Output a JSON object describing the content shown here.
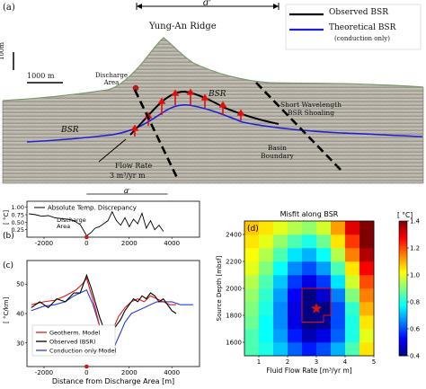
{
  "panel_a": {
    "label": "(a)",
    "dprime": "d'",
    "ridge_name": "Yung-An Ridge",
    "scale_vertical": "100m",
    "scale_horizontal": "1000 m",
    "legend_observed": "Observed BSR",
    "legend_theoretical": "Theoretical BSR",
    "legend_theoretical_note": "(conduction only)",
    "discharge_area": "Discharge\nArea",
    "bsr_left": "BSR",
    "bsr_right": "BSR",
    "short_wavelength": "Short Wavelength\nBSR Shoaling",
    "basin_boundary": "Basin\nBoundary",
    "flow_rate_label": "Flow Rate",
    "flow_rate_value": "3 m³/yr m",
    "colors": {
      "observed": "#000000",
      "theoretical": "#1f1fd6",
      "arrows": "#e01010"
    }
  },
  "panel_b": {
    "label": "(b)",
    "dprime": "d'",
    "ylabel": "[ °C]",
    "legend": "Absolute Temp. Discrepancy",
    "discharge_area": "Discharge\nArea"
  },
  "panel_c": {
    "label": "(c)",
    "ylabel": "[ °C/km]",
    "xlabel": "Distance from Discharge Area [m]",
    "legend": [
      "Geotherm. Model",
      "Observed (BSR)",
      "Conduction only Model"
    ]
  },
  "panel_d": {
    "label": "(d)",
    "title": "Misfit along BSR",
    "xlabel": "Fluid Flow Rate [m³/yr m]",
    "ylabel": "Source Depth [mbsf]",
    "colorbar_label": "[ °C]"
  },
  "chart_data": [
    {
      "type": "line",
      "panel": "b",
      "title": "",
      "xlabel": "",
      "ylabel": "[ °C]",
      "xlim": [
        -2800,
        5300
      ],
      "ylim": [
        0,
        1.2
      ],
      "yticks": [
        0.25,
        0.5,
        0.75,
        1.0
      ],
      "xticks": [
        -2000,
        0,
        2000,
        4000
      ],
      "series": [
        {
          "name": "Absolute Temp. Discrepancy",
          "x": [
            -2700,
            -2400,
            -2100,
            -1800,
            -1500,
            -1200,
            -900,
            -600,
            -300,
            0,
            200,
            400,
            600,
            800,
            1000,
            1200,
            1400,
            1600,
            1800,
            2000,
            2200,
            2400,
            2600,
            2800,
            3000,
            3200,
            3400,
            3600
          ],
          "y": [
            0.78,
            0.75,
            0.7,
            0.72,
            0.65,
            0.62,
            0.6,
            0.55,
            0.42,
            0.05,
            0.15,
            0.3,
            0.35,
            0.45,
            0.55,
            0.85,
            0.55,
            0.4,
            0.65,
            0.35,
            0.6,
            0.45,
            0.8,
            0.3,
            0.55,
            0.25,
            0.4,
            0.2
          ]
        }
      ]
    },
    {
      "type": "line",
      "panel": "c",
      "title": "",
      "xlabel": "Distance from Discharge Area [m]",
      "ylabel": "[ °C/km]",
      "xlim": [
        -2800,
        5300
      ],
      "ylim": [
        22,
        58
      ],
      "yticks": [
        30,
        40,
        50
      ],
      "xticks": [
        -2000,
        0,
        2000,
        4000
      ],
      "series": [
        {
          "name": "Geotherm. Model",
          "x": [
            -2600,
            -2000,
            -1500,
            -1000,
            -500,
            -200,
            0,
            200,
            400,
            600,
            900,
            1200,
            1500,
            1800,
            2100,
            2400,
            2700,
            3000,
            3300,
            3600,
            3900,
            4200
          ],
          "y": [
            43,
            44,
            44.5,
            46,
            48,
            50,
            52,
            47,
            42,
            36,
            32,
            34,
            39,
            42,
            44,
            45,
            44,
            46,
            45,
            44,
            43,
            43
          ]
        },
        {
          "name": "Observed (BSR)",
          "x": [
            -2600,
            -2200,
            -1800,
            -1400,
            -1000,
            -600,
            -300,
            0,
            200,
            400,
            600,
            800,
            1000,
            1200,
            1400,
            1600,
            1800,
            2000,
            2200,
            2400,
            2600,
            2800,
            3000,
            3200,
            3400,
            3600,
            3800,
            4000,
            4200
          ],
          "y": [
            42,
            44,
            42,
            45,
            44,
            47,
            47,
            53,
            49,
            44,
            39,
            35,
            33,
            34,
            36,
            38,
            41,
            43,
            45,
            44,
            46,
            45,
            47,
            46,
            44,
            45,
            43,
            41,
            40
          ]
        },
        {
          "name": "Conduction only Model",
          "x": [
            -2600,
            -2000,
            -1500,
            -1000,
            -600,
            -300,
            0,
            300,
            600,
            900,
            1200,
            1500,
            1800,
            2100,
            2400,
            2700,
            3000,
            3300,
            3600,
            4000,
            4400,
            5000
          ],
          "y": [
            41,
            42.5,
            43,
            44,
            46,
            47,
            48,
            43,
            36,
            30,
            27,
            32,
            37,
            40,
            41,
            42,
            43,
            44,
            44,
            44,
            43,
            43
          ]
        }
      ]
    },
    {
      "type": "heatmap",
      "panel": "d",
      "title": "Misfit along BSR",
      "xlabel": "Fluid Flow Rate [m³/yr m]",
      "ylabel": "Source Depth [mbsf]",
      "x_categories": [
        0.75,
        1.25,
        1.75,
        2.25,
        2.75,
        3.25,
        3.75,
        4.25,
        4.75
      ],
      "y_categories": [
        1550,
        1650,
        1750,
        1850,
        1950,
        2050,
        2150,
        2250,
        2350,
        2450
      ],
      "colorbar_range": [
        0.4,
        1.4
      ],
      "colorbar_ticks": [
        0.4,
        0.6,
        0.8,
        1.0,
        1.2,
        1.4
      ],
      "xticks": [
        1,
        2,
        3,
        4,
        5
      ],
      "yticks": [
        1600,
        1800,
        2000,
        2200,
        2400
      ],
      "best_fit": {
        "flow_rate": 3.0,
        "depth": 1850
      },
      "values": [
        [
          0.85,
          0.8,
          0.72,
          0.62,
          0.55,
          0.6,
          0.7,
          0.85,
          1.05
        ],
        [
          0.85,
          0.78,
          0.68,
          0.55,
          0.45,
          0.5,
          0.62,
          0.8,
          1.0
        ],
        [
          0.88,
          0.78,
          0.66,
          0.5,
          0.38,
          0.42,
          0.6,
          0.8,
          1.05
        ],
        [
          0.9,
          0.8,
          0.66,
          0.5,
          0.35,
          0.4,
          0.6,
          0.82,
          1.1
        ],
        [
          0.92,
          0.82,
          0.68,
          0.52,
          0.4,
          0.48,
          0.65,
          0.9,
          1.15
        ],
        [
          0.95,
          0.85,
          0.72,
          0.58,
          0.5,
          0.58,
          0.75,
          0.98,
          1.2
        ],
        [
          1.0,
          0.9,
          0.78,
          0.66,
          0.6,
          0.68,
          0.85,
          1.05,
          1.28
        ],
        [
          1.02,
          0.95,
          0.85,
          0.75,
          0.7,
          0.78,
          0.95,
          1.15,
          1.35
        ],
        [
          1.05,
          1.0,
          0.92,
          0.85,
          0.8,
          0.88,
          1.05,
          1.22,
          1.4
        ],
        [
          1.08,
          1.05,
          1.0,
          0.95,
          0.92,
          0.98,
          1.12,
          1.3,
          1.45
        ]
      ]
    }
  ]
}
